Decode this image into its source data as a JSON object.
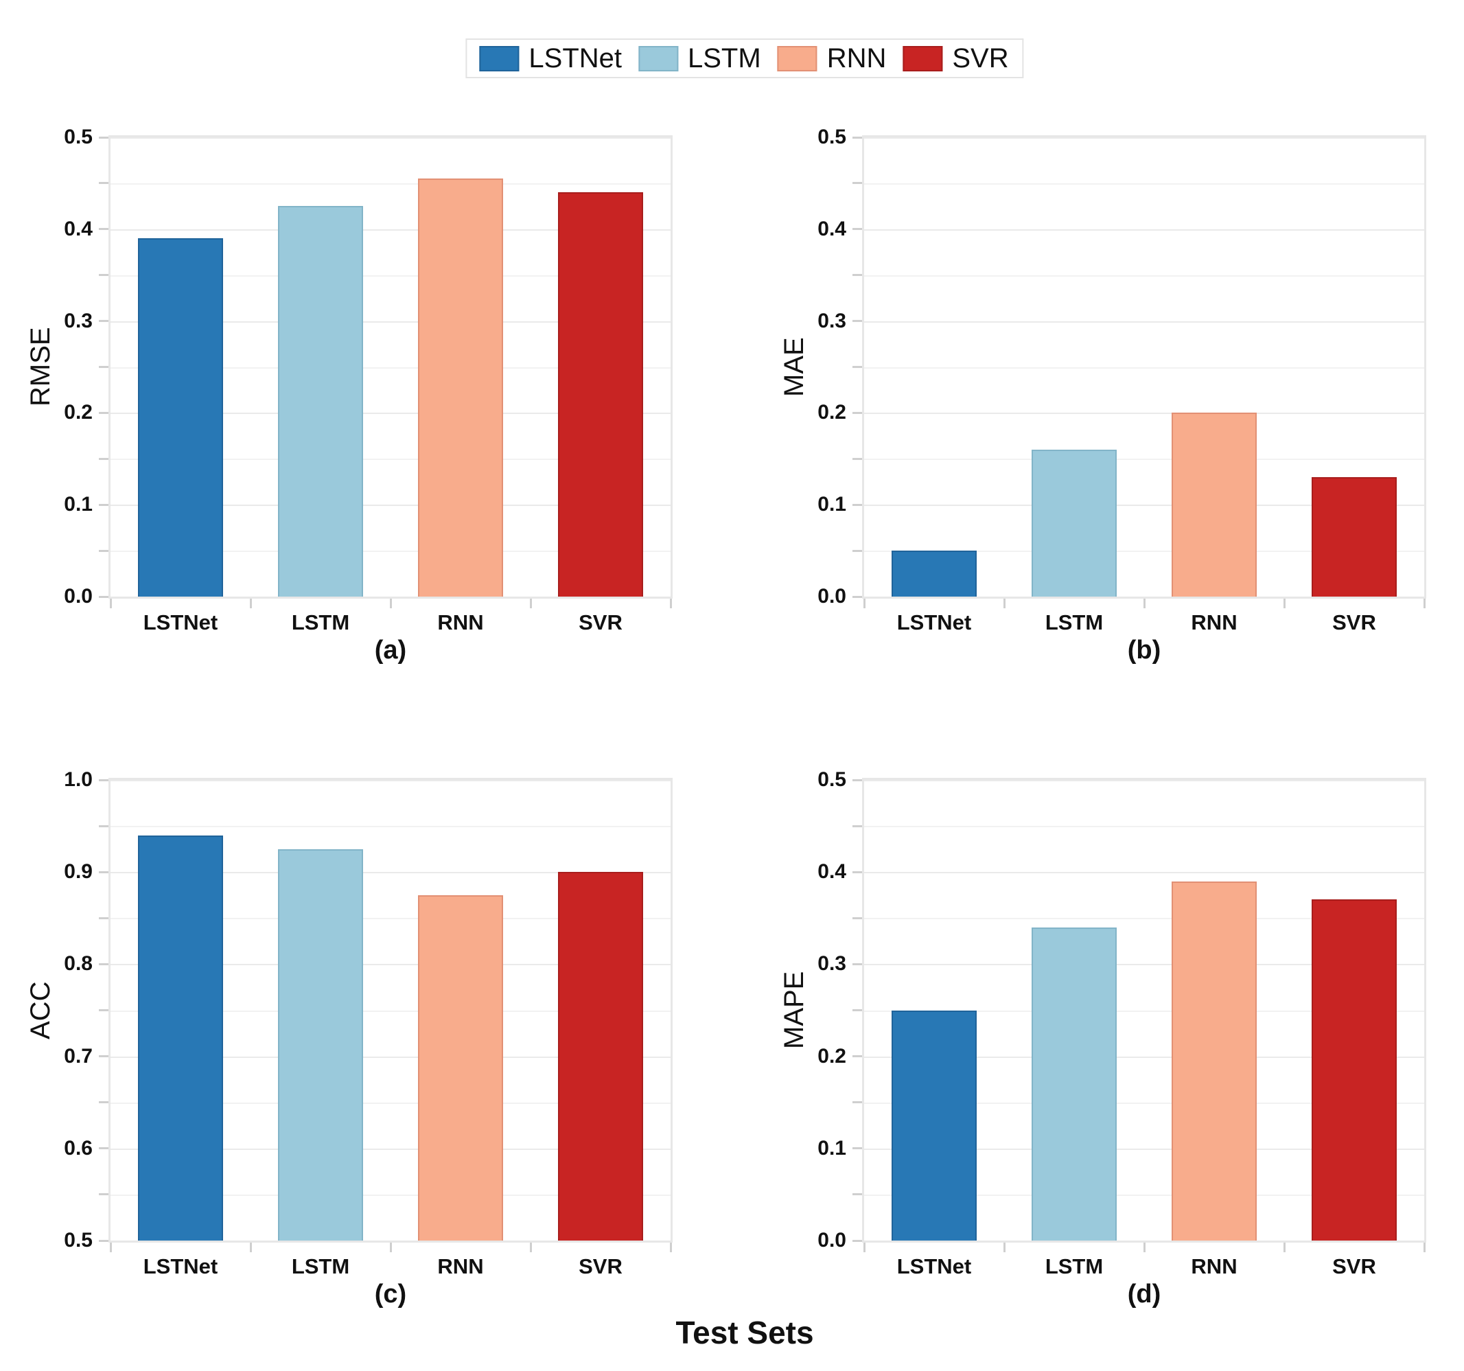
{
  "figure": {
    "xlabel": "Test Sets"
  },
  "legend": {
    "position": "top-center",
    "entries": [
      {
        "label": "LSTNet",
        "color": "#2878B5",
        "border": "#1F639A"
      },
      {
        "label": "LSTM",
        "color": "#9AC9DB",
        "border": "#82B4C8"
      },
      {
        "label": "RNN",
        "color": "#F8AC8C",
        "border": "#E29074"
      },
      {
        "label": "SVR",
        "color": "#C82423",
        "border": "#A81D1C"
      }
    ]
  },
  "chart_data": [
    {
      "type": "bar",
      "caption": "(a)",
      "ylabel": "RMSE",
      "categories": [
        "LSTNet",
        "LSTM",
        "RNN",
        "SVR"
      ],
      "values": [
        0.39,
        0.425,
        0.455,
        0.44
      ],
      "ylim": [
        0.0,
        0.5
      ],
      "ytick_step": 0.1,
      "minor_tick_step": 0.05,
      "grid": true
    },
    {
      "type": "bar",
      "caption": "(b)",
      "ylabel": "MAE",
      "categories": [
        "LSTNet",
        "LSTM",
        "RNN",
        "SVR"
      ],
      "values": [
        0.05,
        0.16,
        0.2,
        0.13
      ],
      "ylim": [
        0.0,
        0.5
      ],
      "ytick_step": 0.1,
      "minor_tick_step": 0.05,
      "grid": true
    },
    {
      "type": "bar",
      "caption": "(c)",
      "ylabel": "ACC",
      "categories": [
        "LSTNet",
        "LSTM",
        "RNN",
        "SVR"
      ],
      "values": [
        0.94,
        0.925,
        0.875,
        0.9
      ],
      "ylim": [
        0.5,
        1.0
      ],
      "ytick_step": 0.1,
      "minor_tick_step": 0.05,
      "grid": true
    },
    {
      "type": "bar",
      "caption": "(d)",
      "ylabel": "MAPE",
      "categories": [
        "LSTNet",
        "LSTM",
        "RNN",
        "SVR"
      ],
      "values": [
        0.25,
        0.34,
        0.39,
        0.37
      ],
      "ylim": [
        0.0,
        0.5
      ],
      "ytick_step": 0.1,
      "minor_tick_step": 0.05,
      "grid": true
    }
  ]
}
